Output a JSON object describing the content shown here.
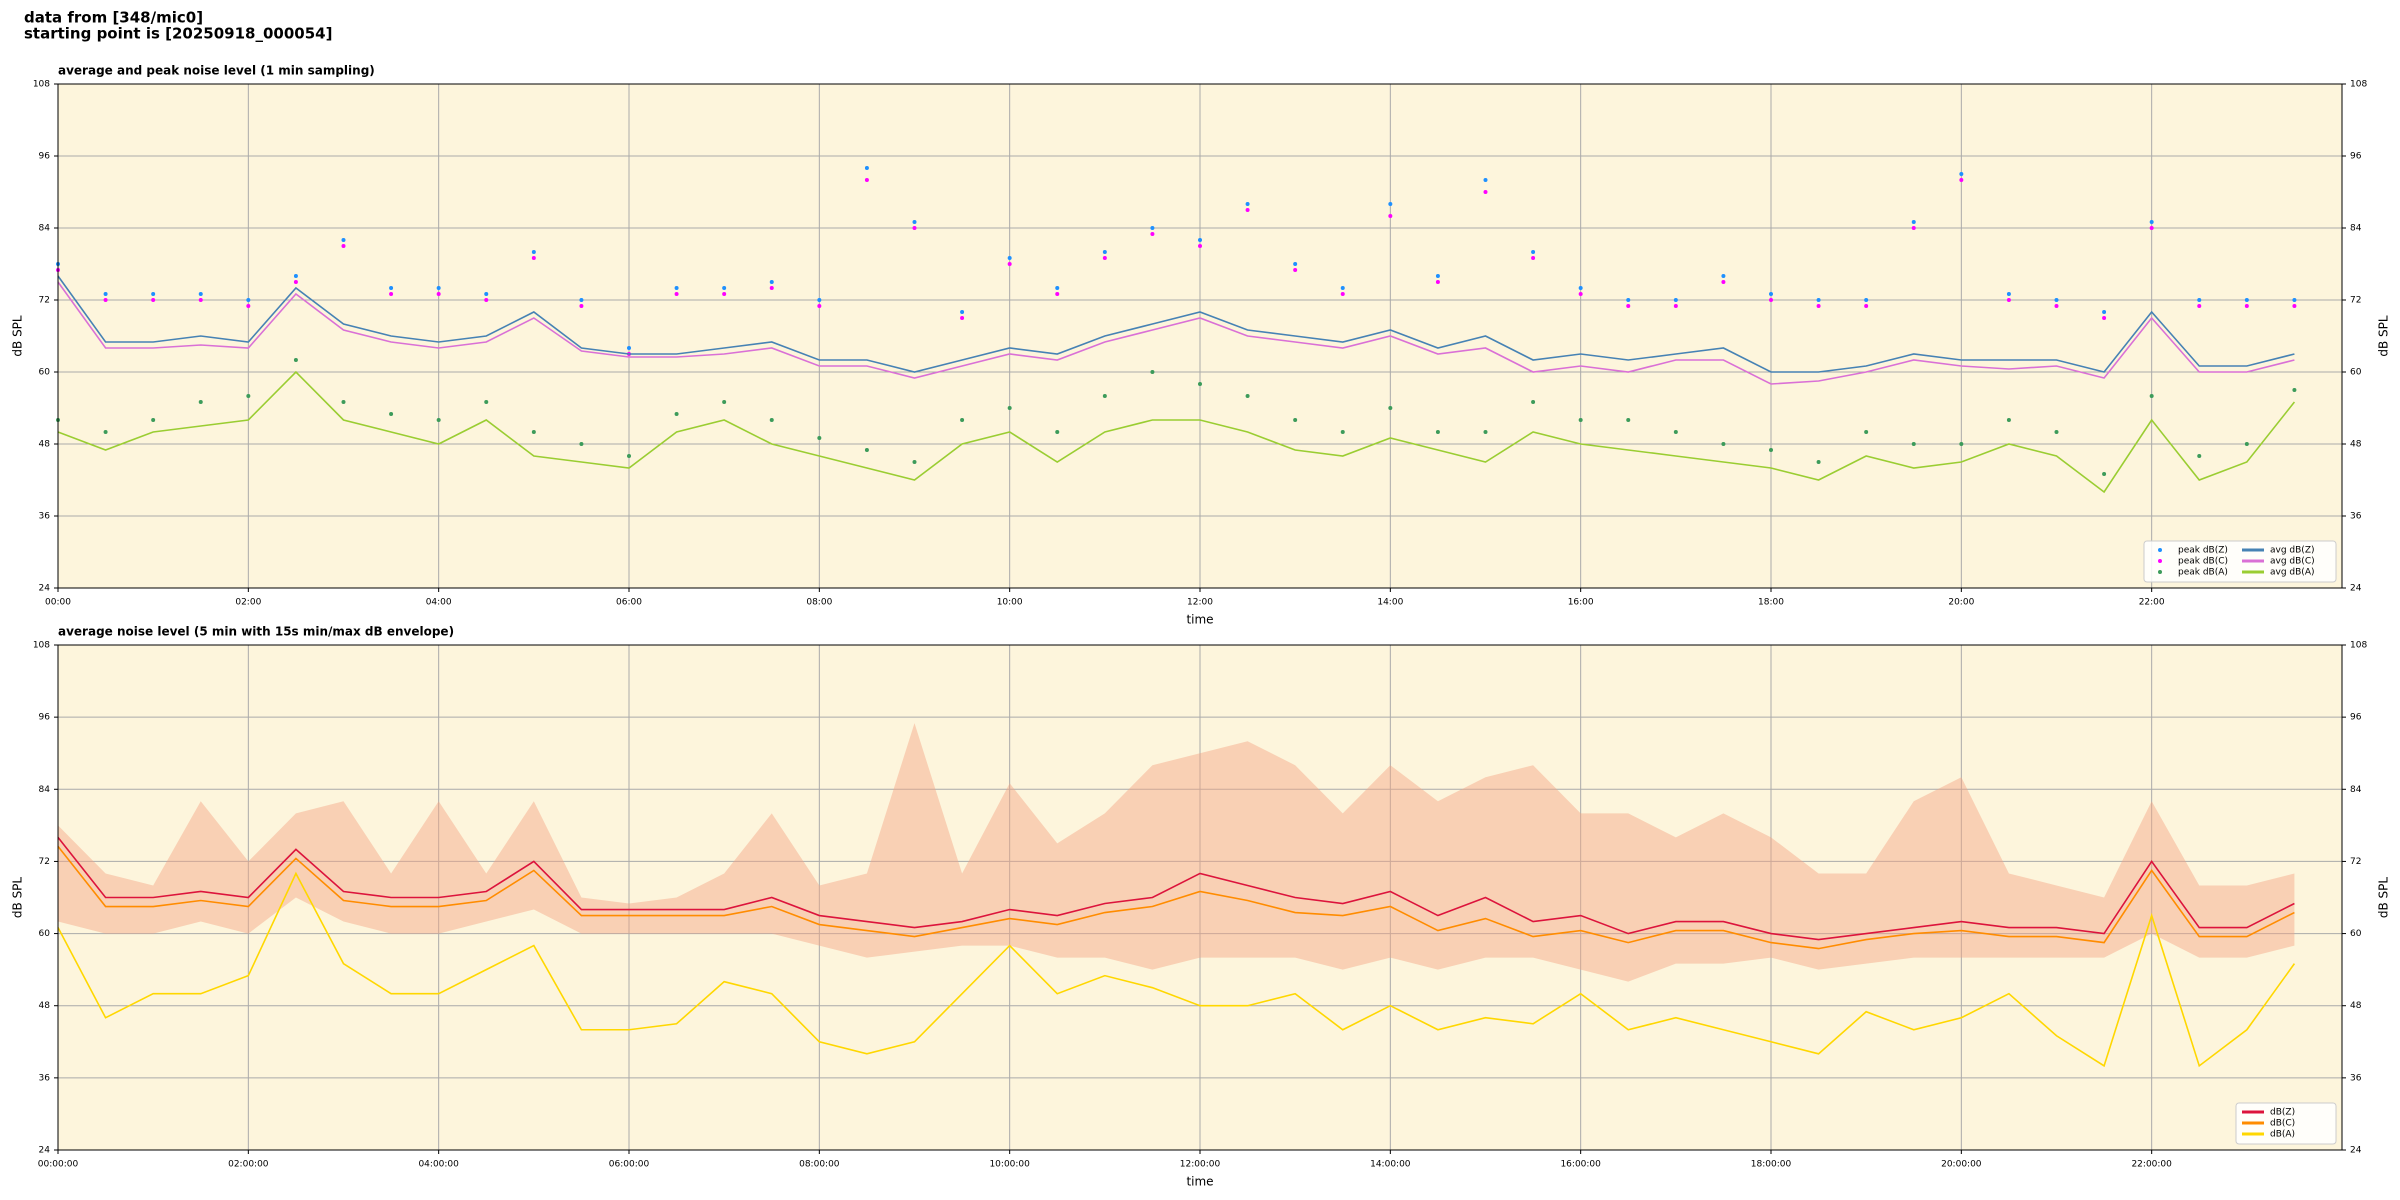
{
  "header": {
    "line1": "data from [348/mic0]",
    "line2": "starting point is [20250918_000054]"
  },
  "chart_data": [
    {
      "type": "line",
      "title": "average and peak noise level (1 min sampling)",
      "xlabel": "time",
      "ylabel": "dB SPL",
      "xlim": [
        0,
        24
      ],
      "ylim": [
        24,
        108
      ],
      "yticks": [
        24,
        36,
        48,
        60,
        72,
        84,
        96,
        108
      ],
      "xticks": [
        {
          "value": 0,
          "label": "00:00"
        },
        {
          "value": 2,
          "label": "02:00"
        },
        {
          "value": 4,
          "label": "04:00"
        },
        {
          "value": 6,
          "label": "06:00"
        },
        {
          "value": 8,
          "label": "08:00"
        },
        {
          "value": 10,
          "label": "10:00"
        },
        {
          "value": 12,
          "label": "12:00"
        },
        {
          "value": 14,
          "label": "14:00"
        },
        {
          "value": 16,
          "label": "16:00"
        },
        {
          "value": 18,
          "label": "18:00"
        },
        {
          "value": 20,
          "label": "20:00"
        },
        {
          "value": 22,
          "label": "22:00"
        }
      ],
      "grid": true,
      "legend": "lower right",
      "legend_columns": 2,
      "background": "#fdf5dc",
      "x": [
        0,
        0.5,
        1,
        1.5,
        2,
        2.5,
        3,
        3.5,
        4,
        4.5,
        5,
        5.5,
        6,
        6.5,
        7,
        7.5,
        8,
        8.5,
        9,
        9.5,
        10,
        10.5,
        11,
        11.5,
        12,
        12.5,
        13,
        13.5,
        14,
        14.5,
        15,
        15.5,
        16,
        16.5,
        17,
        17.5,
        18,
        18.5,
        19,
        19.5,
        20,
        20.5,
        21,
        21.5,
        22,
        22.5,
        23,
        23.5
      ],
      "series": [
        {
          "name": "peak dB(Z)",
          "color": "#1e90ff",
          "style": "points",
          "values": [
            78,
            73,
            73,
            73,
            72,
            76,
            82,
            74,
            74,
            73,
            80,
            72,
            64,
            74,
            74,
            75,
            72,
            94,
            85,
            70,
            79,
            74,
            80,
            84,
            82,
            88,
            78,
            74,
            88,
            76,
            92,
            80,
            74,
            72,
            72,
            76,
            73,
            72,
            72,
            85,
            93,
            73,
            72,
            70,
            85,
            72,
            72,
            72
          ]
        },
        {
          "name": "peak dB(C)",
          "color": "#ff00ff",
          "style": "points",
          "values": [
            77,
            72,
            72,
            72,
            71,
            75,
            81,
            73,
            73,
            72,
            79,
            71,
            63,
            73,
            73,
            74,
            71,
            92,
            84,
            69,
            78,
            73,
            79,
            83,
            81,
            87,
            77,
            73,
            86,
            75,
            90,
            79,
            73,
            71,
            71,
            75,
            72,
            71,
            71,
            84,
            92,
            72,
            71,
            69,
            84,
            71,
            71,
            71
          ]
        },
        {
          "name": "peak dB(A)",
          "color": "#3c9b5a",
          "style": "points",
          "values": [
            52,
            50,
            52,
            55,
            56,
            62,
            55,
            53,
            52,
            55,
            50,
            48,
            46,
            53,
            55,
            52,
            49,
            47,
            45,
            52,
            54,
            50,
            56,
            60,
            58,
            56,
            52,
            50,
            54,
            50,
            50,
            55,
            52,
            52,
            50,
            48,
            47,
            45,
            50,
            48,
            48,
            52,
            50,
            43,
            56,
            46,
            48,
            57
          ]
        },
        {
          "name": "avg dB(Z)",
          "color": "#4682b4",
          "style": "line",
          "values": [
            76,
            65,
            65,
            66,
            65,
            74,
            68,
            66,
            65,
            66,
            70,
            64,
            63,
            63,
            64,
            65,
            62,
            62,
            60,
            62,
            64,
            63,
            66,
            68,
            70,
            67,
            66,
            65,
            67,
            64,
            66,
            62,
            63,
            62,
            63,
            64,
            60,
            60,
            61,
            63,
            62,
            62,
            62,
            60,
            70,
            61,
            61,
            63
          ]
        },
        {
          "name": "avg dB(C)",
          "color": "#da70d6",
          "style": "line",
          "values": [
            75,
            64,
            64,
            64.5,
            64,
            73,
            67,
            65,
            64,
            65,
            69,
            63.5,
            62.5,
            62.5,
            63,
            64,
            61,
            61,
            59,
            61,
            63,
            62,
            65,
            67,
            69,
            66,
            65,
            64,
            66,
            63,
            64,
            60,
            61,
            60,
            62,
            62,
            58,
            58.5,
            60,
            62,
            61,
            60.5,
            61,
            59,
            69,
            60,
            60,
            62
          ]
        },
        {
          "name": "avg dB(A)",
          "color": "#9acd32",
          "style": "line",
          "values": [
            50,
            47,
            50,
            51,
            52,
            60,
            52,
            50,
            48,
            52,
            46,
            45,
            44,
            50,
            52,
            48,
            46,
            44,
            42,
            48,
            50,
            45,
            50,
            52,
            52,
            50,
            47,
            46,
            49,
            47,
            45,
            50,
            48,
            47,
            46,
            45,
            44,
            42,
            46,
            44,
            45,
            48,
            46,
            40,
            52,
            42,
            45,
            55
          ]
        }
      ]
    },
    {
      "type": "line",
      "title": "average noise level (5 min with 15s min/max dB envelope)",
      "xlabel": "time",
      "ylabel": "dB SPL",
      "xlim": [
        0,
        24
      ],
      "ylim": [
        24,
        108
      ],
      "yticks": [
        24,
        36,
        48,
        60,
        72,
        84,
        96,
        108
      ],
      "xticks": [
        {
          "value": 0,
          "label": "00:00:00"
        },
        {
          "value": 2,
          "label": "02:00:00"
        },
        {
          "value": 4,
          "label": "04:00:00"
        },
        {
          "value": 6,
          "label": "06:00:00"
        },
        {
          "value": 8,
          "label": "08:00:00"
        },
        {
          "value": 10,
          "label": "10:00:00"
        },
        {
          "value": 12,
          "label": "12:00:00"
        },
        {
          "value": 14,
          "label": "14:00:00"
        },
        {
          "value": 16,
          "label": "16:00:00"
        },
        {
          "value": 18,
          "label": "18:00:00"
        },
        {
          "value": 20,
          "label": "20:00:00"
        },
        {
          "value": 22,
          "label": "22:00:00"
        }
      ],
      "grid": true,
      "legend": "lower right",
      "legend_columns": 1,
      "background": "#fdf5dc",
      "x": [
        0,
        0.5,
        1,
        1.5,
        2,
        2.5,
        3,
        3.5,
        4,
        4.5,
        5,
        5.5,
        6,
        6.5,
        7,
        7.5,
        8,
        8.5,
        9,
        9.5,
        10,
        10.5,
        11,
        11.5,
        12,
        12.5,
        13,
        13.5,
        14,
        14.5,
        15,
        15.5,
        16,
        16.5,
        17,
        17.5,
        18,
        18.5,
        19,
        19.5,
        20,
        20.5,
        21,
        21.5,
        22,
        22.5,
        23,
        23.5
      ],
      "envelope": {
        "color": "#f4a582",
        "max": [
          78,
          70,
          68,
          82,
          72,
          80,
          82,
          70,
          82,
          70,
          82,
          66,
          65,
          66,
          70,
          80,
          68,
          70,
          95,
          70,
          85,
          75,
          80,
          88,
          90,
          92,
          88,
          80,
          88,
          82,
          86,
          88,
          80,
          80,
          76,
          80,
          76,
          70,
          70,
          82,
          86,
          70,
          68,
          66,
          82,
          68,
          68,
          70
        ],
        "min": [
          62,
          60,
          60,
          62,
          60,
          66,
          62,
          60,
          60,
          62,
          64,
          60,
          60,
          60,
          60,
          60,
          58,
          56,
          57,
          58,
          58,
          56,
          56,
          54,
          56,
          56,
          56,
          54,
          56,
          54,
          56,
          56,
          54,
          52,
          55,
          55,
          56,
          54,
          55,
          56,
          56,
          56,
          56,
          56,
          60,
          56,
          56,
          58
        ]
      },
      "series": [
        {
          "name": "dB(Z)",
          "color": "#dc143c",
          "style": "line",
          "values": [
            76,
            66,
            66,
            67,
            66,
            74,
            67,
            66,
            66,
            67,
            72,
            64,
            64,
            64,
            64,
            66,
            63,
            62,
            61,
            62,
            64,
            63,
            65,
            66,
            70,
            68,
            66,
            65,
            67,
            63,
            66,
            62,
            63,
            60,
            62,
            62,
            60,
            59,
            60,
            61,
            62,
            61,
            61,
            60,
            72,
            61,
            61,
            65
          ]
        },
        {
          "name": "dB(C)",
          "color": "#ff8c00",
          "style": "line",
          "values": [
            74.5,
            64.5,
            64.5,
            65.5,
            64.5,
            72.5,
            65.5,
            64.5,
            64.5,
            65.5,
            70.5,
            63,
            63,
            63,
            63,
            64.5,
            61.5,
            60.5,
            59.5,
            61,
            62.5,
            61.5,
            63.5,
            64.5,
            67,
            65.5,
            63.5,
            63,
            64.5,
            60.5,
            62.5,
            59.5,
            60.5,
            58.5,
            60.5,
            60.5,
            58.5,
            57.5,
            59,
            60,
            60.5,
            59.5,
            59.5,
            58.5,
            70.5,
            59.5,
            59.5,
            63.5
          ]
        },
        {
          "name": "dB(A)",
          "color": "#ffd700",
          "style": "line",
          "values": [
            61,
            46,
            50,
            50,
            53,
            70,
            55,
            50,
            50,
            54,
            58,
            44,
            44,
            45,
            52,
            50,
            42,
            40,
            42,
            50,
            58,
            50,
            53,
            51,
            48,
            48,
            50,
            44,
            48,
            44,
            46,
            45,
            50,
            44,
            46,
            44,
            42,
            40,
            47,
            44,
            46,
            50,
            43,
            38,
            63,
            38,
            44,
            55
          ]
        }
      ]
    }
  ]
}
